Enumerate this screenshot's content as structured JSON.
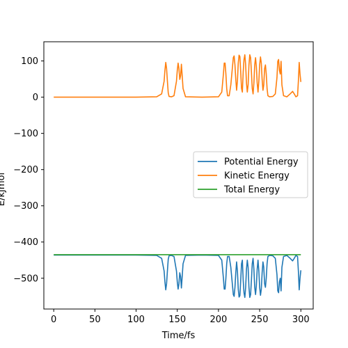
{
  "chart_data": {
    "type": "line",
    "title": "",
    "xlabel": "Time/fs",
    "ylabel": "E/kJmol",
    "xlim": [
      -12,
      315
    ],
    "ylim": [
      -585,
      153
    ],
    "xticks": [
      0,
      50,
      100,
      150,
      200,
      250,
      300
    ],
    "yticks": [
      -500,
      -400,
      -300,
      -200,
      -100,
      0,
      100
    ],
    "grid": false,
    "legend": {
      "placement": "center-right"
    },
    "series": [
      {
        "name": "Potential Energy",
        "color": "#1f77b4",
        "x": [
          0,
          100,
          125,
          131,
          134,
          135,
          136,
          137,
          138,
          139,
          140,
          143,
          146,
          149,
          150,
          151,
          152,
          153,
          154,
          155,
          157,
          160,
          180,
          200,
          204,
          206,
          207,
          208,
          209,
          210,
          211,
          213,
          215,
          217,
          218,
          219,
          220,
          221,
          222,
          223,
          224,
          225,
          226,
          227,
          228,
          229,
          230,
          231,
          232,
          233,
          234,
          235,
          236,
          237,
          238,
          239,
          240,
          241,
          242,
          243,
          244,
          245,
          246,
          247,
          248,
          249,
          250,
          251,
          252,
          253,
          254,
          255,
          256,
          257,
          258,
          259,
          260,
          262,
          266,
          269,
          271,
          272,
          273,
          274,
          275,
          276,
          277,
          279,
          283,
          287,
          290,
          292,
          294,
          296,
          297,
          298,
          299,
          300
        ],
        "y": [
          -436,
          -436,
          -437,
          -445,
          -480,
          -510,
          -532,
          -515,
          -480,
          -448,
          -438,
          -437,
          -440,
          -480,
          -510,
          -530,
          -515,
          -485,
          -495,
          -527,
          -460,
          -437,
          -436,
          -437,
          -450,
          -500,
          -530,
          -530,
          -500,
          -460,
          -440,
          -440,
          -470,
          -520,
          -545,
          -550,
          -525,
          -485,
          -455,
          -480,
          -530,
          -552,
          -548,
          -505,
          -460,
          -450,
          -505,
          -540,
          -553,
          -525,
          -475,
          -450,
          -470,
          -525,
          -553,
          -545,
          -505,
          -460,
          -445,
          -475,
          -525,
          -545,
          -520,
          -475,
          -450,
          -480,
          -525,
          -547,
          -530,
          -485,
          -455,
          -470,
          -515,
          -525,
          -500,
          -460,
          -440,
          -437,
          -438,
          -445,
          -490,
          -535,
          -540,
          -510,
          -500,
          -535,
          -470,
          -440,
          -437,
          -445,
          -452,
          -445,
          -437,
          -440,
          -480,
          -532,
          -500,
          -478
        ]
      },
      {
        "name": "Kinetic Energy",
        "color": "#ff7f0e",
        "x": [
          0,
          100,
          125,
          131,
          134,
          135,
          136,
          137,
          138,
          139,
          140,
          143,
          146,
          149,
          150,
          151,
          152,
          153,
          154,
          155,
          157,
          160,
          180,
          200,
          204,
          206,
          207,
          208,
          209,
          210,
          211,
          213,
          215,
          217,
          218,
          219,
          220,
          221,
          222,
          223,
          224,
          225,
          226,
          227,
          228,
          229,
          230,
          231,
          232,
          233,
          234,
          235,
          236,
          237,
          238,
          239,
          240,
          241,
          242,
          243,
          244,
          245,
          246,
          247,
          248,
          249,
          250,
          251,
          252,
          253,
          254,
          255,
          256,
          257,
          258,
          259,
          260,
          262,
          266,
          269,
          271,
          272,
          273,
          274,
          275,
          276,
          277,
          279,
          283,
          287,
          290,
          292,
          294,
          296,
          297,
          298,
          299,
          300
        ],
        "y": [
          0,
          0,
          1,
          9,
          44,
          74,
          96,
          79,
          44,
          12,
          2,
          1,
          4,
          44,
          74,
          94,
          79,
          49,
          59,
          91,
          24,
          1,
          0,
          1,
          14,
          64,
          94,
          94,
          64,
          24,
          4,
          4,
          34,
          84,
          109,
          114,
          89,
          49,
          19,
          44,
          94,
          116,
          112,
          69,
          24,
          14,
          69,
          104,
          117,
          89,
          39,
          14,
          34,
          89,
          117,
          109,
          69,
          24,
          9,
          39,
          89,
          109,
          84,
          39,
          14,
          44,
          89,
          111,
          94,
          49,
          19,
          34,
          79,
          89,
          64,
          24,
          4,
          1,
          2,
          9,
          54,
          99,
          104,
          74,
          64,
          99,
          34,
          4,
          1,
          9,
          16,
          9,
          1,
          4,
          44,
          96,
          64,
          42
        ]
      },
      {
        "name": "Total Energy",
        "color": "#2ca02c",
        "x": [
          0,
          300
        ],
        "y": [
          -435,
          -435
        ]
      }
    ]
  }
}
